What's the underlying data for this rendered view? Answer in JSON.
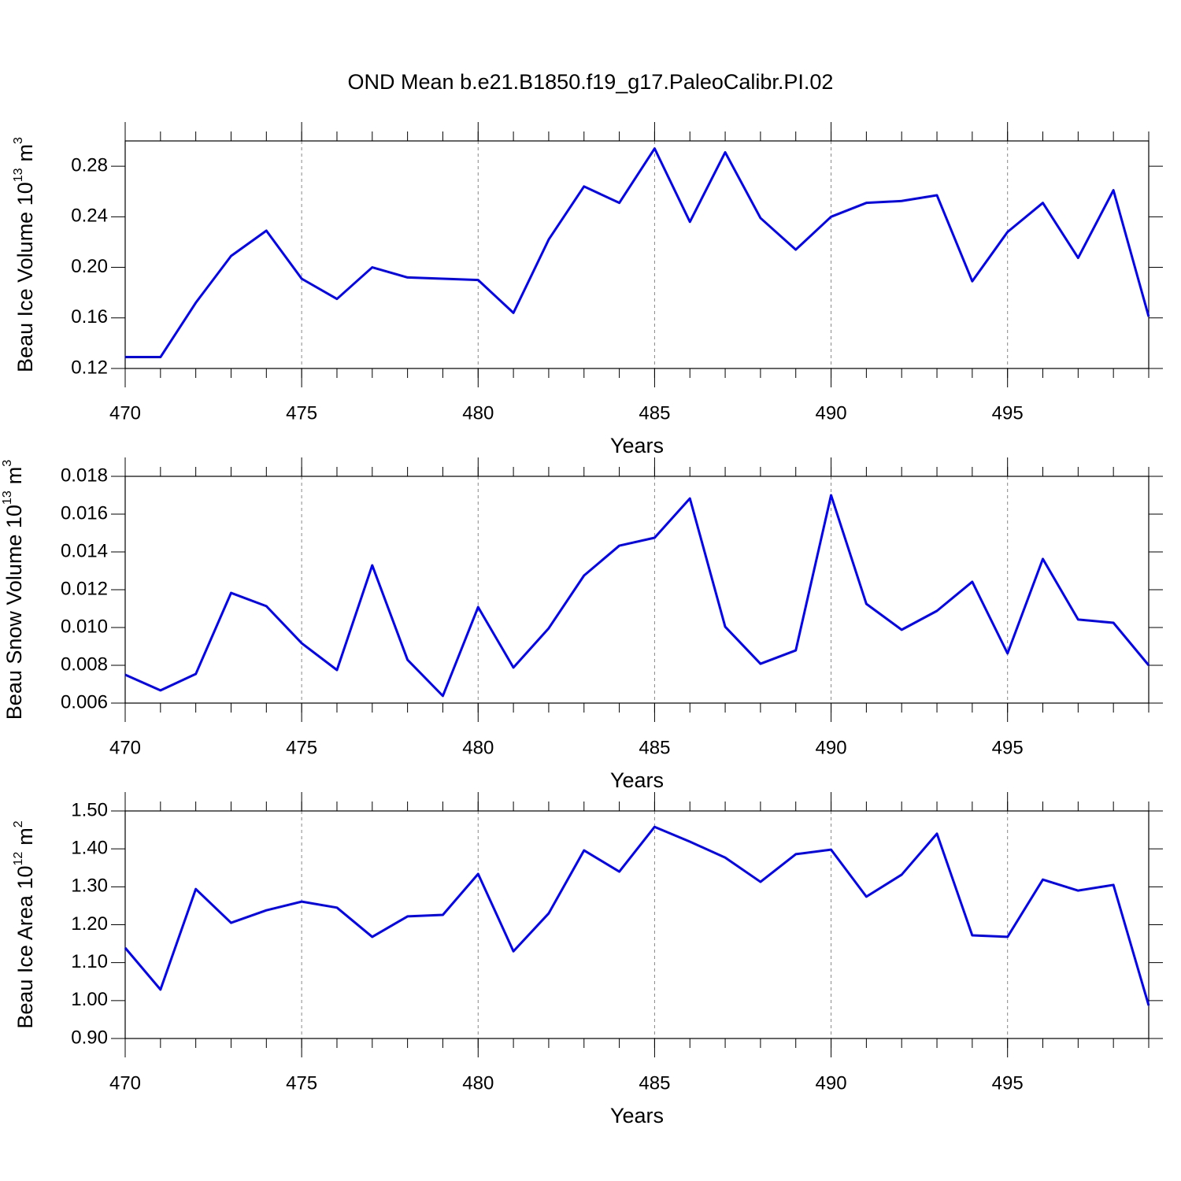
{
  "chart_data": [
    {
      "type": "line",
      "title": "OND Mean b.e21.B1850.f19_g17.PaleoCalibr.PI.02",
      "xlabel": "Years",
      "ylabel": {
        "text": "Beau Ice Volume 10",
        "exponent": "13",
        "unit": "m",
        "unit_exponent": "3"
      },
      "color": "#0000ff",
      "grid": "x",
      "x": [
        470,
        471,
        472,
        473,
        474,
        475,
        476,
        477,
        478,
        479,
        480,
        481,
        482,
        483,
        484,
        485,
        486,
        487,
        488,
        489,
        490,
        491,
        492,
        493,
        494,
        495,
        496,
        497,
        498,
        499
      ],
      "values": [
        0.129,
        0.129,
        0.172,
        0.209,
        0.229,
        0.191,
        0.175,
        0.2,
        0.192,
        0.191,
        0.19,
        0.164,
        0.222,
        0.264,
        0.251,
        0.294,
        0.236,
        0.291,
        0.239,
        0.214,
        0.24,
        0.251,
        0.2525,
        0.257,
        0.189,
        0.228,
        0.251,
        0.2075,
        0.261,
        0.161
      ],
      "xlim": [
        470,
        499
      ],
      "xticks": [
        470,
        475,
        480,
        485,
        490,
        495
      ],
      "ylim": [
        0.12,
        0.3
      ],
      "yticks": [
        0.12,
        0.16,
        {
          "value": 0.2,
          "label": "0.20"
        },
        0.24,
        0.28
      ]
    },
    {
      "type": "line",
      "xlabel": "Years",
      "ylabel": {
        "text": "Beau Snow Volume 10",
        "exponent": "13",
        "unit": "m",
        "unit_exponent": "3"
      },
      "color": "#0000ff",
      "grid": "x",
      "x": [
        470,
        471,
        472,
        473,
        474,
        475,
        476,
        477,
        478,
        479,
        480,
        481,
        482,
        483,
        484,
        485,
        486,
        487,
        488,
        489,
        490,
        491,
        492,
        493,
        494,
        495,
        496,
        497,
        498,
        499
      ],
      "values": [
        0.0075,
        0.00667,
        0.00754,
        0.01183,
        0.01113,
        0.00917,
        0.00775,
        0.01329,
        0.00829,
        0.00638,
        0.01108,
        0.00788,
        0.00996,
        0.01275,
        0.01433,
        0.01475,
        0.01683,
        0.01004,
        0.00808,
        0.00879,
        0.017,
        0.01125,
        0.00988,
        0.01088,
        0.01242,
        0.00863,
        0.01363,
        0.01042,
        0.01025,
        0.008
      ],
      "xlim": [
        470,
        499
      ],
      "xticks": [
        470,
        475,
        480,
        485,
        490,
        495
      ],
      "ylim": [
        0.006,
        0.018
      ],
      "yticks": [
        0.006,
        0.008,
        {
          "value": 0.01,
          "label": "0.010"
        },
        0.012,
        0.014,
        0.016,
        0.018
      ]
    },
    {
      "type": "line",
      "xlabel": "Years",
      "ylabel": {
        "text": "Beau Ice Area 10",
        "exponent": "12",
        "unit": "m",
        "unit_exponent": "2"
      },
      "color": "#0000ff",
      "grid": "x",
      "x": [
        470,
        471,
        472,
        473,
        474,
        475,
        476,
        477,
        478,
        479,
        480,
        481,
        482,
        483,
        484,
        485,
        486,
        487,
        488,
        489,
        490,
        491,
        492,
        493,
        494,
        495,
        496,
        497,
        498,
        499
      ],
      "values": [
        1.139,
        1.029,
        1.294,
        1.205,
        1.238,
        1.261,
        1.245,
        1.168,
        1.222,
        1.226,
        1.334,
        1.13,
        1.23,
        1.396,
        1.34,
        1.458,
        1.419,
        1.377,
        1.313,
        1.386,
        1.398,
        1.274,
        1.332,
        1.44,
        1.172,
        1.168,
        1.319,
        1.29,
        1.305,
        0.987
      ],
      "xlim": [
        470,
        499
      ],
      "xticks": [
        470,
        475,
        480,
        485,
        490,
        495
      ],
      "ylim": [
        0.9,
        1.5
      ],
      "yticks": [
        {
          "value": 0.9,
          "label": "0.90"
        },
        {
          "value": 1.0,
          "label": "1.00"
        },
        {
          "value": 1.1,
          "label": "1.10"
        },
        {
          "value": 1.2,
          "label": "1.20"
        },
        {
          "value": 1.3,
          "label": "1.30"
        },
        {
          "value": 1.4,
          "label": "1.40"
        },
        {
          "value": 1.5,
          "label": "1.50"
        }
      ]
    }
  ]
}
